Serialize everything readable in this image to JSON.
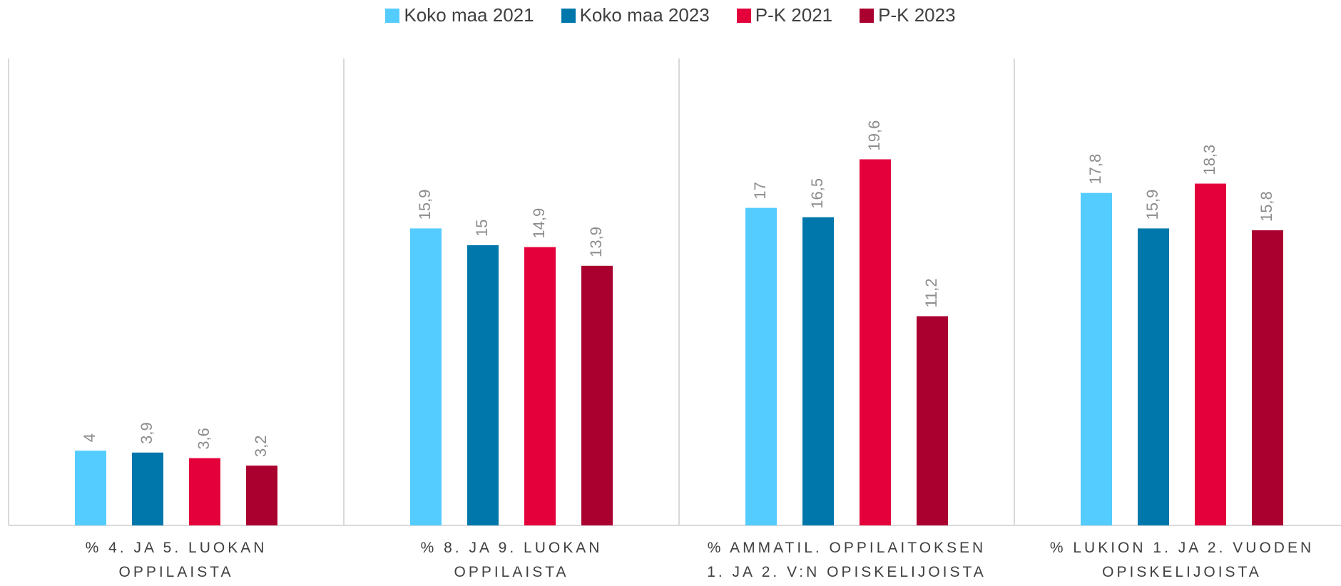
{
  "chart_data": {
    "type": "bar",
    "categories": [
      "% 4. JA 5. LUOKAN OPPILAISTA",
      "% 8. JA 9. LUOKAN OPPILAISTA",
      "% AMMATIL. OPPILAITOKSEN 1. JA 2. V:N OPISKELIJOISTA",
      "% LUKION 1. JA 2. VUODEN OPISKELIJOISTA"
    ],
    "series": [
      {
        "name": "Koko maa 2021",
        "color": "#55ccff",
        "values": [
          4,
          15.9,
          17,
          17.8
        ],
        "value_labels": [
          "4",
          "15,9",
          "17",
          "17,8"
        ]
      },
      {
        "name": "Koko maa 2023",
        "color": "#0077aa",
        "values": [
          3.9,
          15,
          16.5,
          15.9
        ],
        "value_labels": [
          "3,9",
          "15",
          "16,5",
          "15,9"
        ]
      },
      {
        "name": "P-K 2021",
        "color": "#e4003a",
        "values": [
          3.6,
          14.9,
          19.6,
          18.3
        ],
        "value_labels": [
          "3,6",
          "14,9",
          "19,6",
          "18,3"
        ]
      },
      {
        "name": "P-K 2023",
        "color": "#aa0030",
        "values": [
          3.2,
          13.9,
          11.2,
          15.8
        ],
        "value_labels": [
          "3,2",
          "13,9",
          "11,2",
          "15,8"
        ]
      }
    ],
    "ylim": [
      0,
      25
    ],
    "legend": "top"
  }
}
